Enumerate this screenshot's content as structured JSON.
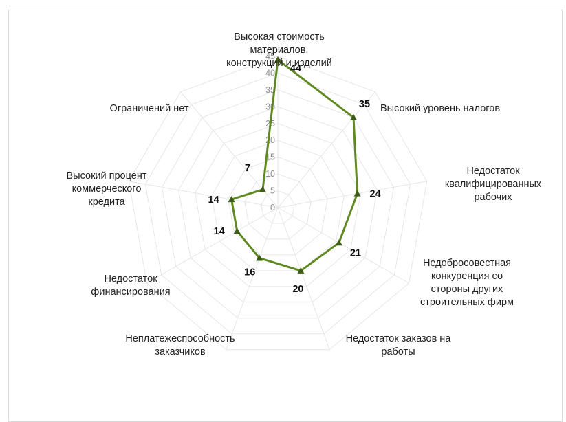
{
  "chart_data": {
    "type": "radar",
    "title": "",
    "categories": [
      "Высокая стоимость материалов, конструкций и изделий",
      "Высокий уровень налогов",
      "Недостаток квалифицированных рабочих",
      "Недобросовестная конкуренция со стороны других строительных фирм",
      "Недостаток заказов на работы",
      "Неплатежеспособность заказчиков",
      "Недостаток финансирования",
      "Высокий процент коммерческого кредита",
      "Ограничений нет"
    ],
    "category_label_lines": [
      [
        "Высокая стоимость",
        "материалов,",
        "конструкций и изделий"
      ],
      [
        "Высокий уровень налогов"
      ],
      [
        "Недостаток",
        "квалифицированных",
        "рабочих"
      ],
      [
        "Недобросовестная",
        "конкуренция со",
        "стороны других",
        "строительных фирм"
      ],
      [
        "Недостаток заказов на",
        "работы"
      ],
      [
        "Неплатежеспособность",
        "заказчиков"
      ],
      [
        "Недостаток",
        "финансирования"
      ],
      [
        "Высокий процент",
        "коммерческого",
        "кредита"
      ],
      [
        "Ограничений нет"
      ]
    ],
    "series": [
      {
        "values": [
          44,
          35,
          24,
          21,
          20,
          16,
          14,
          14,
          7
        ]
      }
    ],
    "radial_ticks": [
      "0",
      "5",
      "10",
      "15",
      "20",
      "25",
      "30",
      "35",
      "40",
      "45"
    ],
    "rmax": 45,
    "line_color": "#5f8a22",
    "marker_color": "#3d5c14",
    "grid_color": "#e6e6e6",
    "legend": "none"
  }
}
